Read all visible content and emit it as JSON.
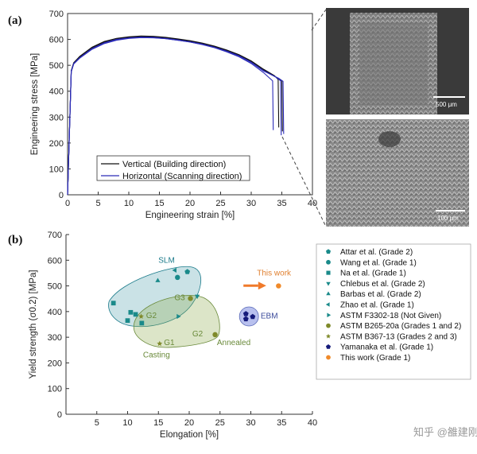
{
  "panels": {
    "a": "(a)",
    "b": "(b)"
  },
  "chart_data": [
    {
      "type": "line",
      "xlabel": "Engineering strain [%]",
      "ylabel": "Engineering stress [MPa]",
      "xlim": [
        0,
        40
      ],
      "ylim": [
        0,
        700
      ],
      "xticks": [
        "0",
        "5",
        "10",
        "15",
        "20",
        "25",
        "30",
        "35",
        "40"
      ],
      "yticks": [
        "0",
        "100",
        "200",
        "300",
        "400",
        "500",
        "600",
        "700"
      ],
      "legend_position": "bottom-left",
      "series": [
        {
          "name": "Vertical (Building direction)",
          "color": "#111111",
          "curves": [
            [
              [
                0,
                0
              ],
              [
                0.6,
                480
              ],
              [
                1,
                510
              ],
              [
                2,
                535
              ],
              [
                4,
                570
              ],
              [
                6,
                592
              ],
              [
                8,
                604
              ],
              [
                10,
                610
              ],
              [
                12,
                613
              ],
              [
                14,
                612
              ],
              [
                16,
                608
              ],
              [
                18,
                602
              ],
              [
                20,
                595
              ],
              [
                22,
                586
              ],
              [
                24,
                574
              ],
              [
                26,
                559
              ],
              [
                28,
                541
              ],
              [
                30,
                517
              ],
              [
                32,
                485
              ],
              [
                33.8,
                460
              ],
              [
                34.4,
                445
              ],
              [
                34.5,
                260
              ]
            ],
            [
              [
                0,
                0
              ],
              [
                0.6,
                478
              ],
              [
                1,
                508
              ],
              [
                2,
                532
              ],
              [
                4,
                567
              ],
              [
                6,
                589
              ],
              [
                8,
                601
              ],
              [
                10,
                608
              ],
              [
                12,
                611
              ],
              [
                14,
                610
              ],
              [
                16,
                606
              ],
              [
                18,
                600
              ],
              [
                20,
                593
              ],
              [
                22,
                584
              ],
              [
                24,
                572
              ],
              [
                26,
                557
              ],
              [
                28,
                539
              ],
              [
                30,
                515
              ],
              [
                32,
                483
              ],
              [
                34,
                455
              ],
              [
                35,
                440
              ],
              [
                35.1,
                245
              ]
            ]
          ]
        },
        {
          "name": "Horizontal (Scanning direction)",
          "color": "#2b2bb8",
          "curves": [
            [
              [
                0,
                0
              ],
              [
                0.6,
                475
              ],
              [
                1,
                505
              ],
              [
                2,
                528
              ],
              [
                4,
                562
              ],
              [
                6,
                584
              ],
              [
                8,
                597
              ],
              [
                10,
                604
              ],
              [
                12,
                607
              ],
              [
                14,
                606
              ],
              [
                16,
                603
              ],
              [
                18,
                597
              ],
              [
                20,
                590
              ],
              [
                22,
                580
              ],
              [
                24,
                568
              ],
              [
                26,
                552
              ],
              [
                28,
                533
              ],
              [
                30,
                507
              ],
              [
                32,
                472
              ],
              [
                33.5,
                440
              ],
              [
                33.6,
                250
              ]
            ],
            [
              [
                0,
                0
              ],
              [
                0.6,
                477
              ],
              [
                1,
                507
              ],
              [
                2,
                530
              ],
              [
                4,
                565
              ],
              [
                6,
                587
              ],
              [
                8,
                600
              ],
              [
                10,
                606
              ],
              [
                12,
                609
              ],
              [
                14,
                608
              ],
              [
                16,
                604
              ],
              [
                18,
                598
              ],
              [
                20,
                591
              ],
              [
                22,
                582
              ],
              [
                24,
                570
              ],
              [
                26,
                555
              ],
              [
                28,
                537
              ],
              [
                30,
                512
              ],
              [
                32,
                480
              ],
              [
                34.2,
                452
              ],
              [
                34.8,
                440
              ],
              [
                34.9,
                230
              ]
            ],
            [
              [
                0,
                0
              ],
              [
                0.6,
                476
              ],
              [
                1,
                506
              ],
              [
                2,
                529
              ],
              [
                4,
                564
              ],
              [
                6,
                586
              ],
              [
                8,
                599
              ],
              [
                10,
                605
              ],
              [
                12,
                608
              ],
              [
                14,
                607
              ],
              [
                16,
                603
              ],
              [
                18,
                597
              ],
              [
                20,
                590
              ],
              [
                22,
                581
              ],
              [
                24,
                569
              ],
              [
                26,
                554
              ],
              [
                28,
                536
              ],
              [
                30,
                511
              ],
              [
                32,
                478
              ],
              [
                34.5,
                450
              ],
              [
                35.2,
                438
              ],
              [
                35.3,
                235
              ]
            ]
          ]
        }
      ]
    },
    {
      "type": "scatter",
      "xlabel": "Elongation [%]",
      "ylabel": "Yield strength (σ0.2) [MPa]",
      "xlim": [
        0,
        40
      ],
      "ylim": [
        0,
        700
      ],
      "xticks": [
        "5",
        "10",
        "15",
        "20",
        "25",
        "30",
        "35",
        "40"
      ],
      "yticks": [
        "0",
        "100",
        "200",
        "300",
        "400",
        "500",
        "600",
        "700"
      ],
      "legend_position": "right",
      "series": [
        {
          "name": "Attar et al. (Grade 2)",
          "marker": "pentagon",
          "color": "#1a8a8a",
          "points": [
            [
              19.7,
              555
            ]
          ]
        },
        {
          "name": "Wang et al. (Grade 1)",
          "marker": "circle",
          "color": "#1a8a8a",
          "points": [
            [
              18.1,
              533
            ]
          ]
        },
        {
          "name": "Na et al. (Grade 1)",
          "marker": "square",
          "color": "#1a8a8a",
          "points": [
            [
              7.7,
              433
            ],
            [
              10,
              365
            ],
            [
              10.5,
              397
            ],
            [
              11.3,
              389
            ],
            [
              12.3,
              355
            ]
          ]
        },
        {
          "name": "Chlebus et al. (Grade 2)",
          "marker": "triangle-down",
          "color": "#1a8a8a",
          "points": [
            [
              21.3,
              460
            ]
          ]
        },
        {
          "name": "Barbas et al. (Grade 2)",
          "marker": "triangle-up",
          "color": "#1a8a8a",
          "points": [
            [
              14.9,
              520
            ]
          ]
        },
        {
          "name": "Zhao et al. (Grade 1)",
          "marker": "triangle-left",
          "color": "#1a8a8a",
          "points": [
            [
              17.7,
              561
            ]
          ]
        },
        {
          "name": "ASTM F3302-18 (Not Given)",
          "marker": "triangle-right",
          "color": "#1a8a8a",
          "points": [
            [
              18.2,
              381
            ]
          ]
        },
        {
          "name": "ASTM B265-20a (Grades 1 and 2)",
          "marker": "circle",
          "color": "#7f8a2a",
          "points": [
            [
              20.2,
              451
            ],
            [
              24.2,
              310
            ]
          ]
        },
        {
          "name": "ASTM B367-13 (Grades 2 and 3)",
          "marker": "star",
          "color": "#7f8a2a",
          "points": [
            [
              12.2,
              381
            ],
            [
              15.2,
              275
            ]
          ]
        },
        {
          "name": "Yamanaka et al. (Grade 1)",
          "marker": "pentagon",
          "color": "#151a7a",
          "points": [
            [
              29.2,
              391
            ],
            [
              30.3,
              380
            ],
            [
              29.2,
              371
            ]
          ]
        },
        {
          "name": "This work (Grade 1)",
          "marker": "circle",
          "color": "#f08a2a",
          "points": [
            [
              34.5,
              500
            ]
          ]
        }
      ],
      "annotations": {
        "slm": "SLM",
        "casting": "Casting",
        "annealed": "Annealed",
        "ebm": "EBM",
        "this_work": "This work",
        "g1": "G1",
        "g2_cast": "G2",
        "g2_ann": "G2",
        "g3": "G3"
      }
    }
  ],
  "micrographs": {
    "top_scale": "500 μm",
    "bottom_scale": "100 μm"
  },
  "watermark": "知乎 @雒建刚"
}
